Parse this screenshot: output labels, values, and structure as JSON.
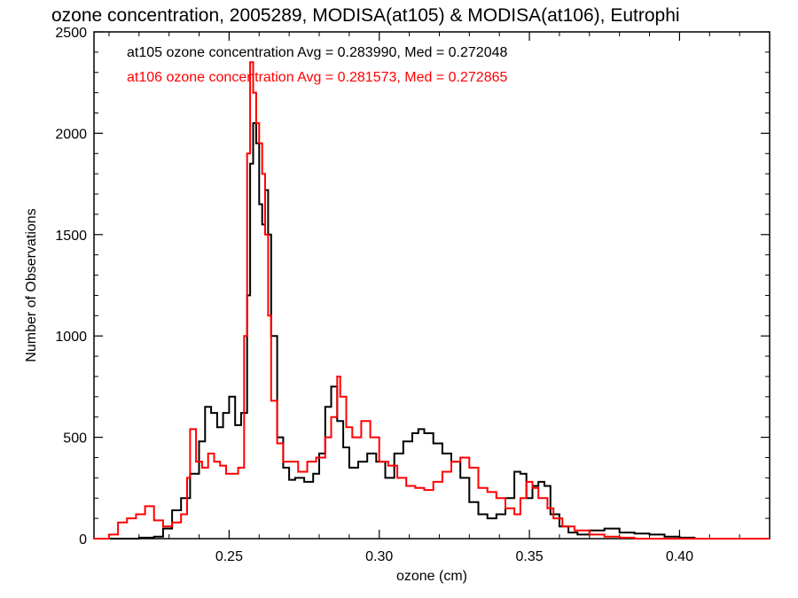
{
  "chart_data": {
    "type": "line",
    "title": "ozone concentration, 2005289, MODISA(at105) & MODISA(at106), Eutrophi",
    "xlabel": "ozone (cm)",
    "ylabel": "Number of Observations",
    "xlim": [
      0.205,
      0.43
    ],
    "ylim": [
      0,
      2500
    ],
    "xticks": [
      0.25,
      0.3,
      0.35,
      0.4
    ],
    "xtick_labels": [
      "0.25",
      "0.30",
      "0.35",
      "0.40"
    ],
    "yticks": [
      0,
      500,
      1000,
      1500,
      2000,
      2500
    ],
    "ytick_labels": [
      "0",
      "500",
      "1000",
      "1500",
      "2000",
      "2500"
    ],
    "grid": false,
    "legend_position": "top-left",
    "series": [
      {
        "name": "at105 ozone concentration",
        "legend": "at105 ozone concentration Avg = 0.283990, Med = 0.272048",
        "color": "#000000",
        "x": [
          0.205,
          0.21,
          0.215,
          0.22,
          0.225,
          0.228,
          0.231,
          0.234,
          0.237,
          0.24,
          0.242,
          0.244,
          0.246,
          0.248,
          0.25,
          0.252,
          0.254,
          0.256,
          0.257,
          0.258,
          0.259,
          0.26,
          0.261,
          0.262,
          0.263,
          0.264,
          0.266,
          0.268,
          0.27,
          0.272,
          0.275,
          0.278,
          0.28,
          0.282,
          0.284,
          0.286,
          0.288,
          0.29,
          0.293,
          0.296,
          0.299,
          0.302,
          0.305,
          0.308,
          0.311,
          0.313,
          0.315,
          0.318,
          0.321,
          0.324,
          0.327,
          0.33,
          0.333,
          0.336,
          0.339,
          0.342,
          0.345,
          0.347,
          0.349,
          0.351,
          0.353,
          0.355,
          0.357,
          0.36,
          0.363,
          0.366,
          0.37,
          0.375,
          0.38,
          0.385,
          0.39,
          0.395,
          0.4,
          0.405,
          0.41,
          0.42,
          0.43
        ],
        "y": [
          0,
          0,
          0,
          5,
          10,
          50,
          140,
          200,
          320,
          480,
          650,
          620,
          550,
          620,
          700,
          560,
          620,
          1200,
          1850,
          2050,
          1950,
          1650,
          1550,
          1720,
          1500,
          1000,
          500,
          350,
          290,
          300,
          280,
          320,
          420,
          650,
          750,
          580,
          450,
          350,
          380,
          420,
          380,
          300,
          420,
          480,
          520,
          540,
          520,
          470,
          420,
          380,
          300,
          180,
          120,
          100,
          120,
          200,
          330,
          320,
          200,
          260,
          280,
          260,
          120,
          60,
          30,
          20,
          40,
          50,
          30,
          25,
          20,
          10,
          5,
          0,
          0,
          0,
          0
        ]
      },
      {
        "name": "at106 ozone concentration",
        "legend": "at106 ozone concentration Avg = 0.281573, Med = 0.272865",
        "color": "#ff0000",
        "x": [
          0.205,
          0.21,
          0.213,
          0.216,
          0.219,
          0.222,
          0.225,
          0.228,
          0.231,
          0.234,
          0.236,
          0.237,
          0.239,
          0.241,
          0.243,
          0.245,
          0.247,
          0.249,
          0.251,
          0.253,
          0.255,
          0.256,
          0.257,
          0.258,
          0.259,
          0.26,
          0.261,
          0.262,
          0.263,
          0.264,
          0.266,
          0.268,
          0.27,
          0.273,
          0.276,
          0.279,
          0.282,
          0.284,
          0.286,
          0.287,
          0.289,
          0.291,
          0.294,
          0.297,
          0.3,
          0.303,
          0.306,
          0.309,
          0.312,
          0.315,
          0.318,
          0.321,
          0.324,
          0.327,
          0.33,
          0.333,
          0.336,
          0.339,
          0.342,
          0.345,
          0.347,
          0.349,
          0.351,
          0.353,
          0.356,
          0.358,
          0.361,
          0.365,
          0.37,
          0.375,
          0.38,
          0.385,
          0.39,
          0.4,
          0.41,
          0.42,
          0.43
        ],
        "y": [
          0,
          20,
          80,
          100,
          120,
          160,
          90,
          60,
          80,
          120,
          300,
          540,
          380,
          350,
          420,
          380,
          360,
          320,
          320,
          350,
          1000,
          1900,
          2350,
          2200,
          2050,
          1950,
          1800,
          1500,
          1100,
          680,
          470,
          380,
          380,
          330,
          380,
          400,
          500,
          600,
          800,
          700,
          550,
          500,
          580,
          500,
          380,
          360,
          300,
          260,
          250,
          240,
          280,
          330,
          380,
          400,
          350,
          250,
          230,
          200,
          150,
          120,
          200,
          280,
          250,
          200,
          150,
          100,
          60,
          40,
          20,
          10,
          5,
          0,
          0,
          0,
          0,
          0,
          0
        ]
      }
    ]
  }
}
